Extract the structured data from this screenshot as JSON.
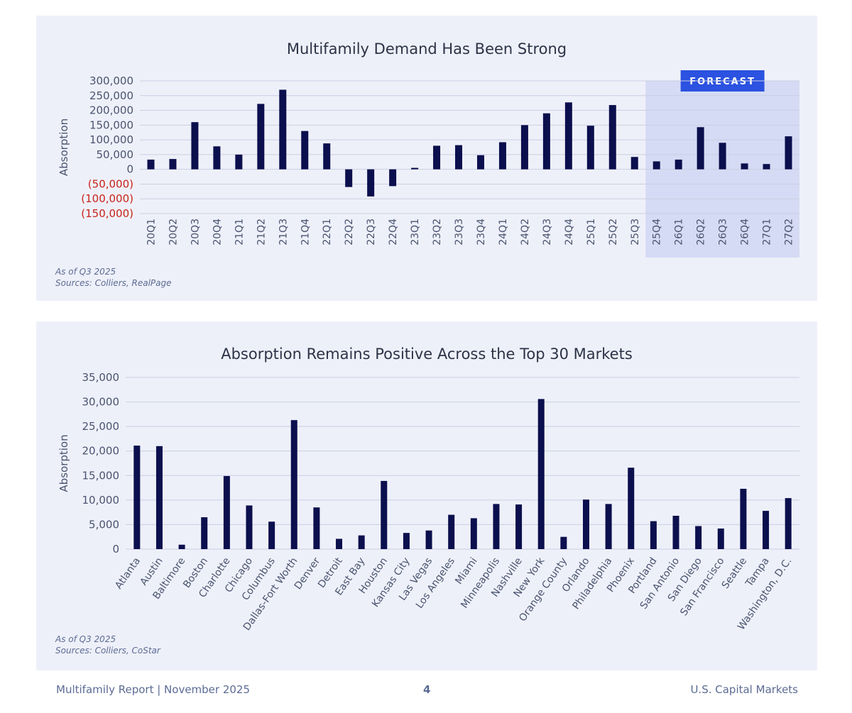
{
  "chart_data": [
    {
      "type": "bar",
      "title": "Multifamily Demand Has Been Strong",
      "ylabel": "Absorption",
      "xlabel": "",
      "ylim": [
        -150000,
        300000
      ],
      "yticks": [
        {
          "value": 300000,
          "label": "300,000"
        },
        {
          "value": 250000,
          "label": "250,000"
        },
        {
          "value": 200000,
          "label": "200,000"
        },
        {
          "value": 150000,
          "label": "150,000"
        },
        {
          "value": 100000,
          "label": "100,000"
        },
        {
          "value": 50000,
          "label": "50,000"
        },
        {
          "value": 0,
          "label": "0"
        },
        {
          "value": -50000,
          "label": "(50,000)"
        },
        {
          "value": -100000,
          "label": "(100,000)"
        },
        {
          "value": -150000,
          "label": "(150,000)"
        }
      ],
      "categories": [
        "20Q1",
        "20Q2",
        "20Q3",
        "20Q4",
        "21Q1",
        "21Q2",
        "21Q3",
        "21Q4",
        "22Q1",
        "22Q2",
        "22Q3",
        "22Q4",
        "23Q1",
        "23Q2",
        "23Q3",
        "23Q4",
        "24Q1",
        "24Q2",
        "24Q3",
        "24Q4",
        "25Q1",
        "25Q2",
        "25Q3",
        "25Q4",
        "26Q1",
        "26Q2",
        "26Q3",
        "26Q4",
        "27Q1",
        "27Q2"
      ],
      "values": [
        33000,
        35000,
        160000,
        78000,
        50000,
        222000,
        270000,
        130000,
        88000,
        -60000,
        -92000,
        -57000,
        5000,
        80000,
        82000,
        48000,
        92000,
        150000,
        190000,
        227000,
        148000,
        218000,
        42000,
        27000,
        33000,
        143000,
        90000,
        20000,
        18000,
        112000
      ],
      "forecast_start": "25Q4",
      "forecast_label": "FORECAST",
      "grid": true,
      "colors": {
        "bar": "#0b0f4d",
        "negative_tick": "#c8231a",
        "forecast_shade": "#d5dbf4",
        "forecast_badge": "#2b52e0"
      },
      "notes": [
        "As of Q3 2025",
        "Sources: Colliers, RealPage"
      ]
    },
    {
      "type": "bar",
      "title": "Absorption Remains Positive Across the Top 30 Markets",
      "ylabel": "Absorption",
      "xlabel": "",
      "ylim": [
        0,
        35000
      ],
      "yticks": [
        {
          "value": 35000,
          "label": "35,000"
        },
        {
          "value": 30000,
          "label": "30,000"
        },
        {
          "value": 25000,
          "label": "25,000"
        },
        {
          "value": 20000,
          "label": "20,000"
        },
        {
          "value": 15000,
          "label": "15,000"
        },
        {
          "value": 10000,
          "label": "10,000"
        },
        {
          "value": 5000,
          "label": "5,000"
        },
        {
          "value": 0,
          "label": "0"
        }
      ],
      "categories": [
        "Atlanta",
        "Austin",
        "Baltimore",
        "Boston",
        "Charlotte",
        "Chicago",
        "Columbus",
        "Dallas-Fort Worth",
        "Denver",
        "Detroit",
        "East Bay",
        "Houston",
        "Kansas City",
        "Las Vegas",
        "Los Angeles",
        "Miami",
        "Minneapolis",
        "Nashville",
        "New York",
        "Orange County",
        "Orlando",
        "Philadelphia",
        "Phoenix",
        "Portland",
        "San Antonio",
        "San Diego",
        "San Francisco",
        "Seattle",
        "Tampa",
        "Washington, D.C."
      ],
      "values": [
        21100,
        21000,
        900,
        6500,
        14900,
        8900,
        5600,
        26300,
        8500,
        2100,
        2800,
        13900,
        3300,
        3800,
        7000,
        6300,
        9200,
        9100,
        30600,
        2500,
        10100,
        9200,
        16600,
        5700,
        6800,
        4700,
        4200,
        12300,
        7800,
        10400
      ],
      "grid": true,
      "colors": {
        "bar": "#0b0f4d"
      },
      "notes": [
        "As of Q3 2025",
        "Sources: Colliers, CoStar"
      ]
    }
  ],
  "footer": {
    "left": "Multifamily Report | November 2025",
    "page": "4",
    "right": "U.S. Capital Markets"
  }
}
